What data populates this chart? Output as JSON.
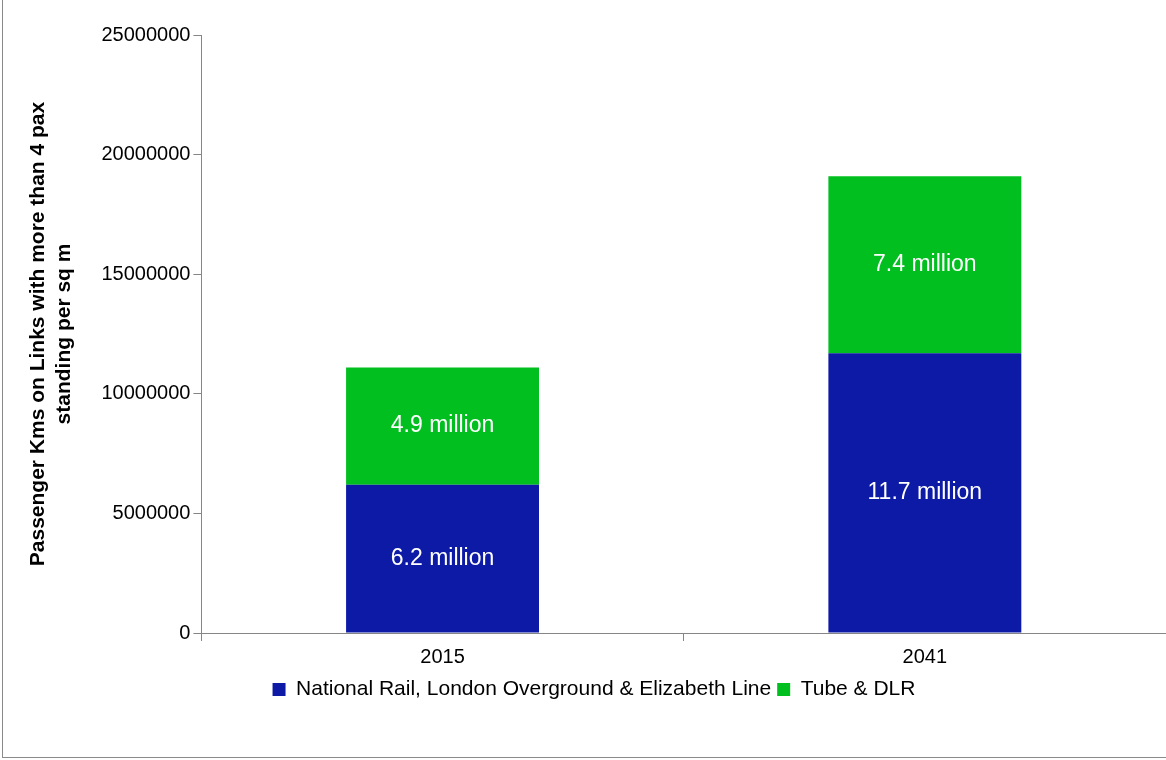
{
  "chart_data": {
    "type": "bar",
    "stacked": true,
    "ylabel": "Passenger Kms on Links with more than 4 pax standing per sq m",
    "categories": [
      "2015",
      "2041"
    ],
    "series": [
      {
        "name": "National Rail, London Overground & Elizabeth Line",
        "color": "#0c1aa6",
        "values": [
          6200000,
          11700000
        ],
        "value_labels": [
          "6.2 million",
          "11.7 million"
        ]
      },
      {
        "name": "Tube & DLR",
        "color": "#00bf1f",
        "values": [
          4900000,
          7400000
        ],
        "value_labels": [
          "4.9 million",
          "7.4 million"
        ]
      }
    ],
    "ylim": [
      0,
      25000000
    ],
    "yticks": [
      0,
      5000000,
      10000000,
      15000000,
      20000000,
      25000000
    ],
    "grid": false,
    "legend": "bottom"
  }
}
